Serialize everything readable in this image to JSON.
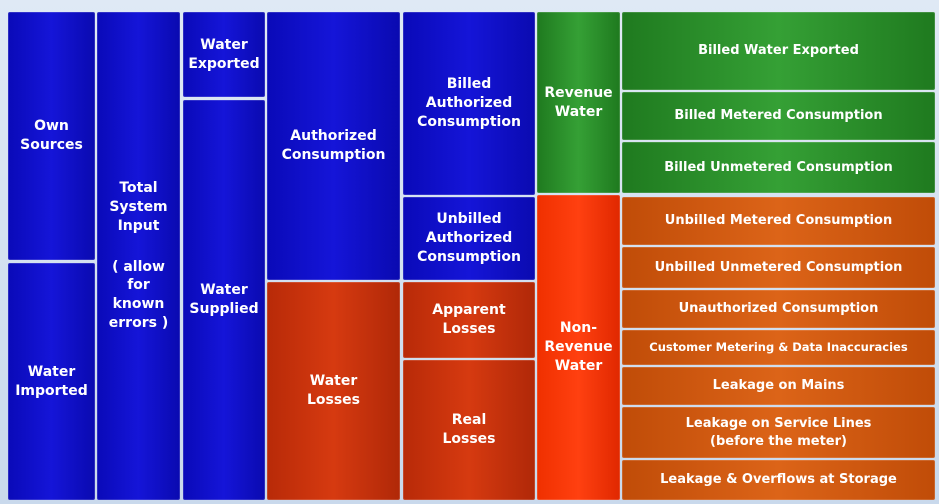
{
  "blocks": [
    {
      "label": "Own\nSources"
    },
    {
      "label": "Water\nImported"
    },
    {
      "label": "Total\nSystem\nInput",
      "note": "( allow\nfor\nknown\nerrors )"
    },
    {
      "label": "Water\nExported"
    },
    {
      "label": "Water\nSupplied"
    },
    {
      "label": "Authorized\nConsumption"
    },
    {
      "label": "Water\nLosses"
    },
    {
      "label": "Billed\nAuthorized\nConsumption"
    },
    {
      "label": "Unbilled\nAuthorized\nConsumption"
    },
    {
      "label": "Apparent\nLosses"
    },
    {
      "label": "Real\nLosses"
    },
    {
      "label": "Revenue\nWater"
    },
    {
      "label": "Non-\nRevenue\nWater"
    },
    {
      "label": "Billed Water Exported"
    },
    {
      "label": "Billed Metered Consumption"
    },
    {
      "label": "Billed Unmetered Consumption"
    },
    {
      "label": "Unbilled Metered Consumption"
    },
    {
      "label": "Unbilled Unmetered Consumption"
    },
    {
      "label": "Unauthorized Consumption"
    },
    {
      "label": "Customer Metering & Data Inaccuracies"
    },
    {
      "label": "Leakage on Mains"
    },
    {
      "label": "Leakage on Service Lines\n(before the meter)"
    },
    {
      "label": "Leakage & Overflows at Storage"
    }
  ]
}
